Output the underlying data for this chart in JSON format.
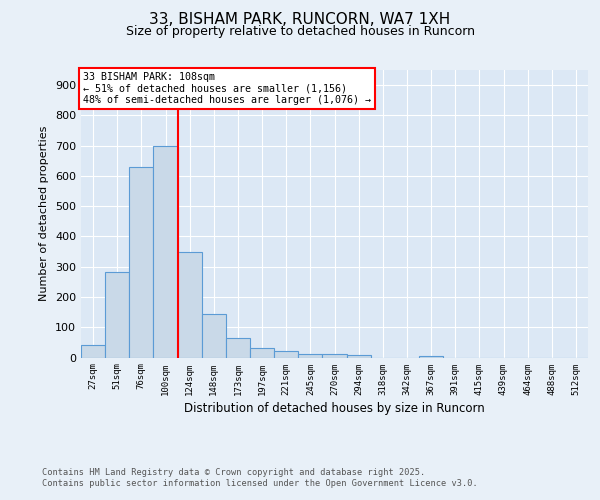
{
  "title": "33, BISHAM PARK, RUNCORN, WA7 1XH",
  "subtitle": "Size of property relative to detached houses in Runcorn",
  "xlabel": "Distribution of detached houses by size in Runcorn",
  "ylabel": "Number of detached properties",
  "categories": [
    "27sqm",
    "51sqm",
    "76sqm",
    "100sqm",
    "124sqm",
    "148sqm",
    "173sqm",
    "197sqm",
    "221sqm",
    "245sqm",
    "270sqm",
    "294sqm",
    "318sqm",
    "342sqm",
    "367sqm",
    "391sqm",
    "415sqm",
    "439sqm",
    "464sqm",
    "488sqm",
    "512sqm"
  ],
  "values": [
    42,
    283,
    630,
    700,
    350,
    145,
    65,
    30,
    20,
    12,
    10,
    8,
    0,
    0,
    5,
    0,
    0,
    0,
    0,
    0,
    0
  ],
  "bar_color": "#c9d9e8",
  "bar_edge_color": "#5b9bd5",
  "background_color": "#e8f0f8",
  "plot_bg_color": "#dce8f5",
  "grid_color": "#ffffff",
  "red_line_x": 3.5,
  "annotation_text": "33 BISHAM PARK: 108sqm\n← 51% of detached houses are smaller (1,156)\n48% of semi-detached houses are larger (1,076) →",
  "annotation_box_color": "#ff0000",
  "ylim": [
    0,
    950
  ],
  "yticks": [
    0,
    100,
    200,
    300,
    400,
    500,
    600,
    700,
    800,
    900
  ],
  "footnote1": "Contains HM Land Registry data © Crown copyright and database right 2025.",
  "footnote2": "Contains public sector information licensed under the Open Government Licence v3.0."
}
